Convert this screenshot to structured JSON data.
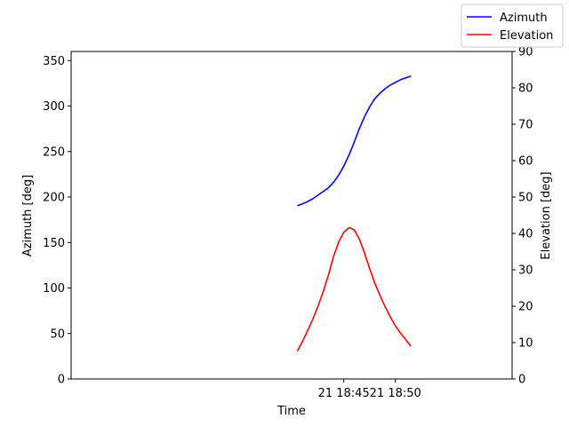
{
  "chart_data": {
    "type": "line",
    "xlabel": "Time",
    "y_left_label": "Azimuth [deg]",
    "y_right_label": "Elevation [deg]",
    "x_range_minutes": [
      18.6,
      61.3
    ],
    "x_ticks": [
      {
        "minute": 45,
        "label": "21 18:45"
      },
      {
        "minute": 50,
        "label": "21 18:50"
      }
    ],
    "ylim_left": [
      0,
      360
    ],
    "yticks_left": [
      "0",
      "50",
      "100",
      "150",
      "200",
      "250",
      "300",
      "350"
    ],
    "ylim_right": [
      0,
      90
    ],
    "yticks_right": [
      "0",
      "10",
      "20",
      "30",
      "40",
      "50",
      "60",
      "70",
      "80",
      "90"
    ],
    "legend_position": "top-right",
    "grid": false,
    "x_times": [
      "18:40:30",
      "18:41:00",
      "18:41:30",
      "18:42:00",
      "18:42:30",
      "18:43:00",
      "18:43:30",
      "18:44:00",
      "18:44:30",
      "18:45:00",
      "18:45:30",
      "18:46:00",
      "18:46:30",
      "18:47:00",
      "18:47:30",
      "18:48:00",
      "18:48:30",
      "18:49:00",
      "18:49:30",
      "18:50:00",
      "18:50:30",
      "18:51:00",
      "18:51:30"
    ],
    "series": [
      {
        "name": "Azimuth",
        "axis": "left",
        "color": "#0000ff",
        "values": [
          190.5,
          192.5,
          195,
          198,
          202,
          206,
          210,
          216,
          224,
          234,
          246,
          260,
          275,
          288,
          299,
          308,
          314,
          319,
          323,
          326,
          329,
          331,
          333
        ]
      },
      {
        "name": "Elevation",
        "axis": "right",
        "color": "#ff0000",
        "values": [
          7.6,
          10.3,
          13.3,
          16.4,
          19.9,
          23.9,
          28.4,
          33.5,
          37.6,
          40.3,
          41.6,
          41,
          38.5,
          34.7,
          30.4,
          26.4,
          23,
          19.9,
          17.1,
          14.6,
          12.6,
          10.8,
          9
        ]
      }
    ]
  }
}
